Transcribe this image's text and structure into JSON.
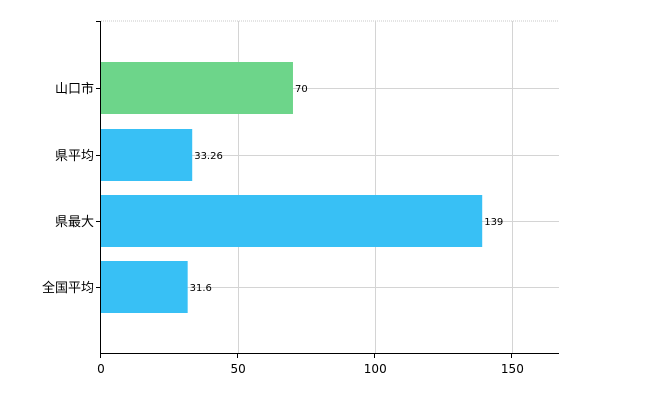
{
  "chart_data": {
    "type": "bar",
    "orientation": "horizontal",
    "categories": [
      "山口市",
      "県平均",
      "県最大",
      "全国平均"
    ],
    "values": [
      70,
      33.26,
      139,
      31.6
    ],
    "value_labels": [
      "70",
      "33.26",
      "139",
      "31.6"
    ],
    "bar_colors": [
      "#6dd58a",
      "#38c0f5",
      "#38c0f5",
      "#38c0f5"
    ],
    "xlim": [
      0,
      167
    ],
    "xticks": [
      0,
      50,
      100,
      150
    ],
    "xtick_labels": [
      "0",
      "50",
      "100",
      "150"
    ],
    "grid": true,
    "legend": false
  }
}
